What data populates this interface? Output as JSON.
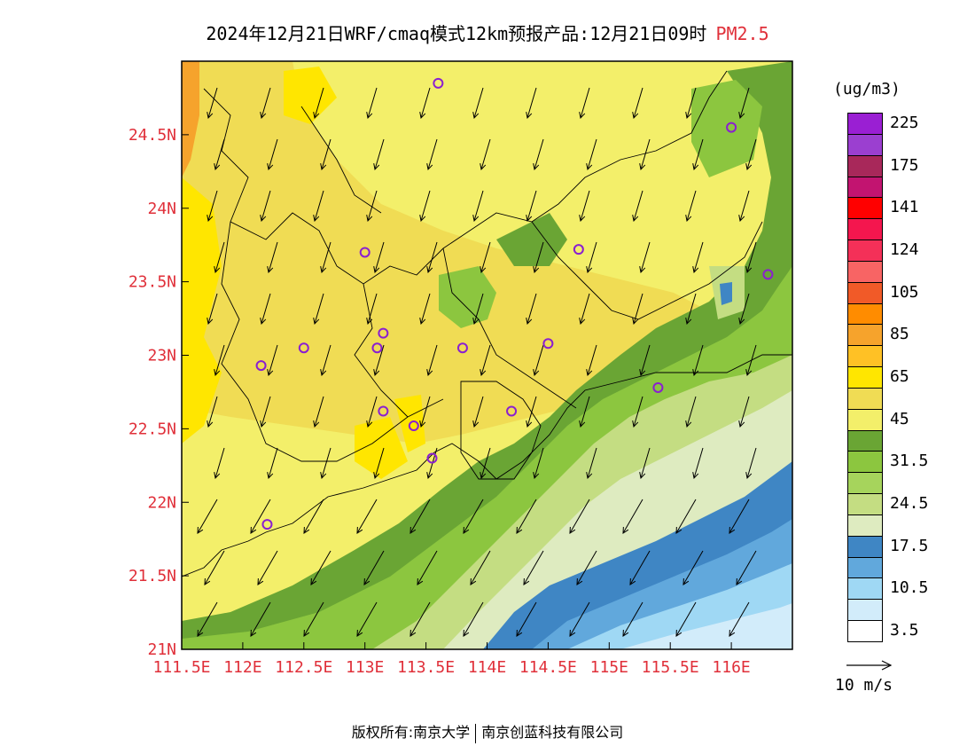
{
  "header": {
    "title": "2024年12月21日WRF/cmaq模式12km预报产品:12月21日09时",
    "species": "PM2.5"
  },
  "map": {
    "lon_range": [
      111.5,
      116.5
    ],
    "lat_range": [
      21.0,
      25.0
    ],
    "lat_ticks": [
      {
        "value": 24.5,
        "label": "24.5N"
      },
      {
        "value": 24.0,
        "label": "24N"
      },
      {
        "value": 23.5,
        "label": "23.5N"
      },
      {
        "value": 23.0,
        "label": "23N"
      },
      {
        "value": 22.5,
        "label": "22.5N"
      },
      {
        "value": 22.0,
        "label": "22N"
      },
      {
        "value": 21.5,
        "label": "21.5N"
      },
      {
        "value": 21.0,
        "label": "21N"
      }
    ],
    "lon_ticks": [
      {
        "value": 111.5,
        "label": "111.5E"
      },
      {
        "value": 112.0,
        "label": "112E"
      },
      {
        "value": 112.5,
        "label": "112.5E"
      },
      {
        "value": 113.0,
        "label": "113E"
      },
      {
        "value": 113.5,
        "label": "113.5E"
      },
      {
        "value": 114.0,
        "label": "114E"
      },
      {
        "value": 114.5,
        "label": "114.5E"
      },
      {
        "value": 115.0,
        "label": "115E"
      },
      {
        "value": 115.5,
        "label": "115.5E"
      },
      {
        "value": 116.0,
        "label": "116E"
      }
    ],
    "tick_color": "#e0303a",
    "stations": [
      [
        113.6,
        24.85
      ],
      [
        116.0,
        24.55
      ],
      [
        113.0,
        23.7
      ],
      [
        114.75,
        23.72
      ],
      [
        116.3,
        23.55
      ],
      [
        113.15,
        23.15
      ],
      [
        112.5,
        23.05
      ],
      [
        113.1,
        23.05
      ],
      [
        113.8,
        23.05
      ],
      [
        114.5,
        23.08
      ],
      [
        112.15,
        22.93
      ],
      [
        115.4,
        22.78
      ],
      [
        113.15,
        22.62
      ],
      [
        113.4,
        22.52
      ],
      [
        114.2,
        22.62
      ],
      [
        113.55,
        22.3
      ],
      [
        112.2,
        21.85
      ]
    ]
  },
  "legend": {
    "unit": "(ug/m3)",
    "bins": [
      {
        "color": "#9a1fd3",
        "label": "225"
      },
      {
        "color": "#9b3fd0",
        "label": ""
      },
      {
        "color": "#a8285a",
        "label": "175"
      },
      {
        "color": "#c21470",
        "label": ""
      },
      {
        "color": "#ff0000",
        "label": "141"
      },
      {
        "color": "#f4164e",
        "label": ""
      },
      {
        "color": "#f43058",
        "label": "124"
      },
      {
        "color": "#f86464",
        "label": ""
      },
      {
        "color": "#f15a28",
        "label": "105"
      },
      {
        "color": "#ff8c00",
        "label": ""
      },
      {
        "color": "#f6a32c",
        "label": "85"
      },
      {
        "color": "#ffc125",
        "label": ""
      },
      {
        "color": "#ffe600",
        "label": "65"
      },
      {
        "color": "#f0dc54",
        "label": ""
      },
      {
        "color": "#f3ef6a",
        "label": "45"
      },
      {
        "color": "#6aa534",
        "label": ""
      },
      {
        "color": "#8cc63f",
        "label": "31.5"
      },
      {
        "color": "#a6d45c",
        "label": ""
      },
      {
        "color": "#c4dd82",
        "label": "24.5"
      },
      {
        "color": "#deebc0",
        "label": ""
      },
      {
        "color": "#3f86c4",
        "label": "17.5"
      },
      {
        "color": "#61a8dc",
        "label": ""
      },
      {
        "color": "#9fd8f4",
        "label": "10.5"
      },
      {
        "color": "#d2ecfa",
        "label": ""
      },
      {
        "color": "#ffffff",
        "label": "3.5"
      }
    ]
  },
  "wind_reference": {
    "label": "10 m/s",
    "speed": 10
  },
  "footer": {
    "left": "版权所有:南京大学",
    "right": "南京创蓝科技有限公司"
  }
}
